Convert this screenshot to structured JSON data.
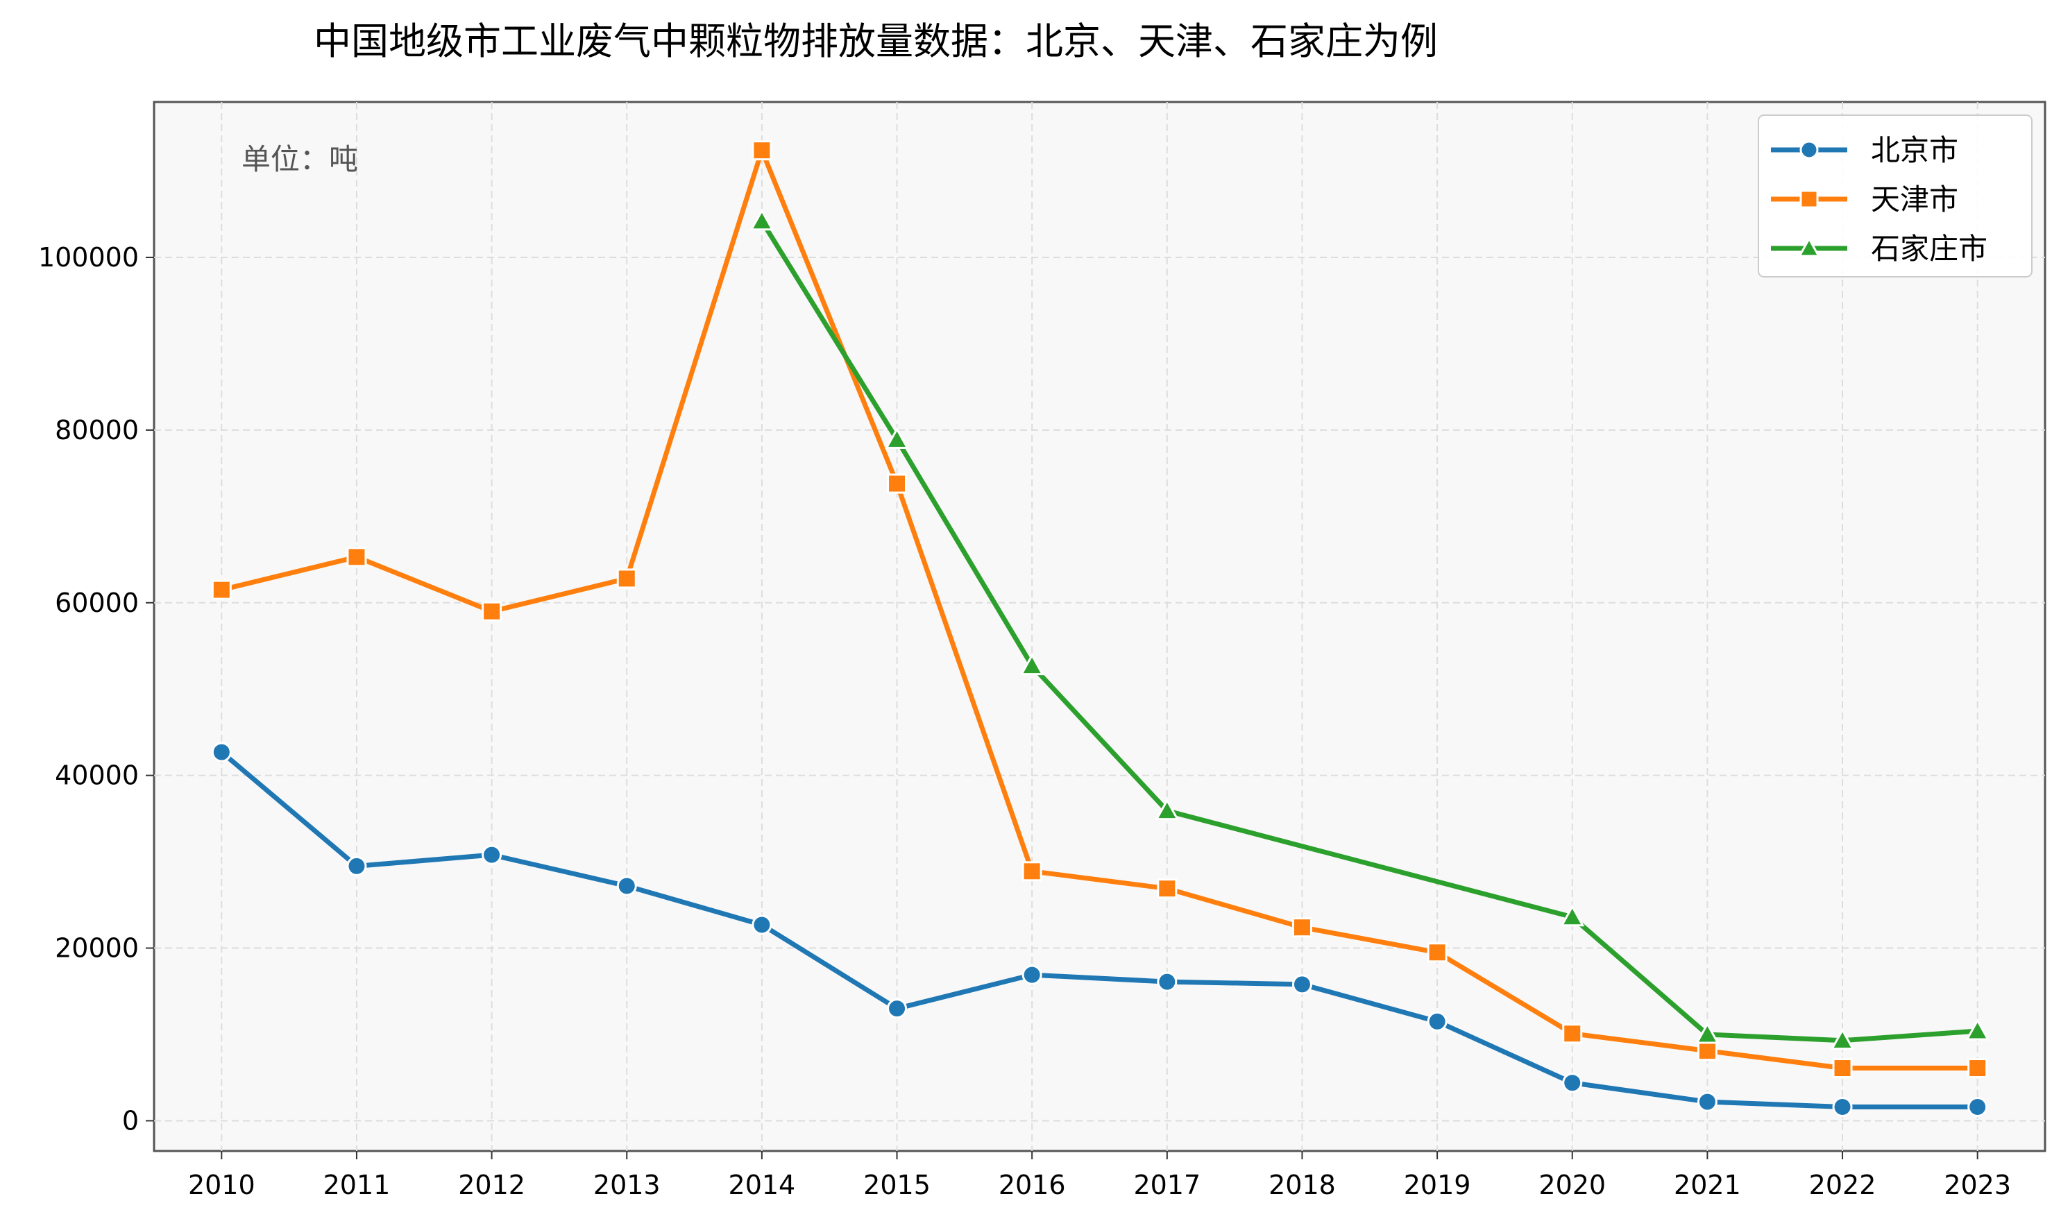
{
  "chart_data": {
    "type": "line",
    "title": "中国地级市工业废气中颗粒物排放量数据：北京、天津、石家庄为例",
    "annotation": "单位：吨",
    "xlabel": "",
    "ylabel": "",
    "x": [
      2010,
      2011,
      2012,
      2013,
      2014,
      2015,
      2016,
      2017,
      2018,
      2019,
      2020,
      2021,
      2022,
      2023
    ],
    "y_ticks": [
      0,
      20000,
      40000,
      60000,
      80000,
      100000
    ],
    "ylim": [
      -3500,
      118000
    ],
    "xlim": [
      2009.5,
      2023.5
    ],
    "grid": true,
    "legend_position": "top-right",
    "series": [
      {
        "name": "北京市",
        "color": "#1f77b4",
        "marker": "circle",
        "values": [
          42700,
          29500,
          30800,
          27200,
          22700,
          13000,
          16900,
          16100,
          15800,
          11500,
          4400,
          2200,
          1600,
          1600
        ]
      },
      {
        "name": "天津市",
        "color": "#ff7f0e",
        "marker": "square",
        "values": [
          61500,
          65300,
          59000,
          62800,
          112400,
          73800,
          28900,
          26900,
          22400,
          19500,
          10100,
          8100,
          6100,
          6100
        ]
      },
      {
        "name": "石家庄市",
        "color": "#2ca02c",
        "marker": "triangle",
        "values": [
          null,
          null,
          null,
          null,
          104200,
          78900,
          52700,
          35900,
          null,
          null,
          23600,
          10000,
          9300,
          10400
        ]
      }
    ]
  }
}
